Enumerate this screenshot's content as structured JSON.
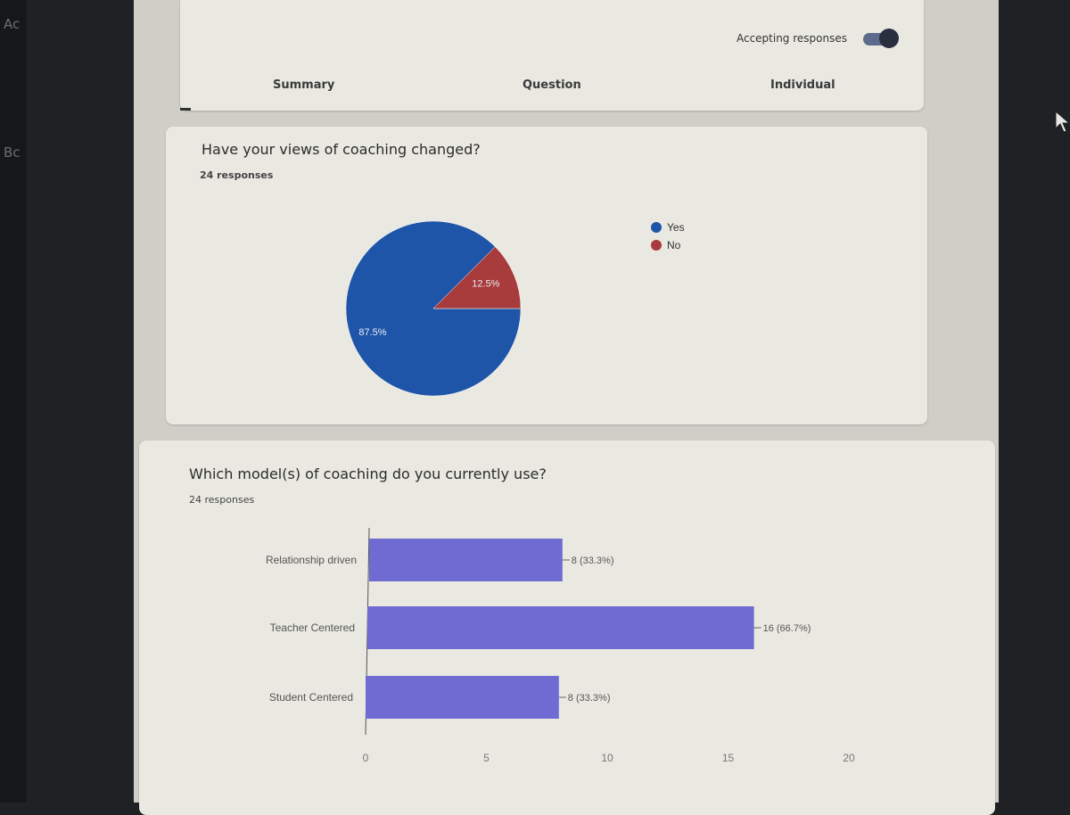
{
  "desktop": {
    "side_labels": [
      "Ac",
      "Bc"
    ]
  },
  "header": {
    "accepting_label": "Accepting responses",
    "tabs": [
      {
        "label": "Summary",
        "active": true
      },
      {
        "label": "Question",
        "active": false
      },
      {
        "label": "Individual",
        "active": false
      }
    ]
  },
  "question1": {
    "title": "Have your views of coaching changed?",
    "responses": "24 responses",
    "legend": [
      {
        "label": "Yes",
        "color": "#1f55a8"
      },
      {
        "label": "No",
        "color": "#a83b3b"
      }
    ],
    "chart_data": {
      "type": "pie",
      "slices": [
        {
          "label": "Yes",
          "value": 87.5,
          "display": "87.5%",
          "color": "#1f55a8"
        },
        {
          "label": "No",
          "value": 12.5,
          "display": "12.5%",
          "color": "#a83b3b"
        }
      ]
    }
  },
  "question2": {
    "title": "Which model(s) of coaching do you currently use?",
    "responses": "24 responses",
    "chart_data": {
      "type": "bar",
      "orientation": "horizontal",
      "categories": [
        "Relationship driven",
        "Teacher Centered",
        "Student Centered"
      ],
      "values": [
        8,
        16,
        8
      ],
      "value_labels": [
        "8 (33.3%)",
        "16 (66.7%)",
        "8 (33.3%)"
      ],
      "xlim": [
        0,
        20
      ],
      "xticks": [
        "0",
        "5",
        "10",
        "15",
        "20"
      ],
      "bar_color": "#6f6bd2"
    }
  }
}
